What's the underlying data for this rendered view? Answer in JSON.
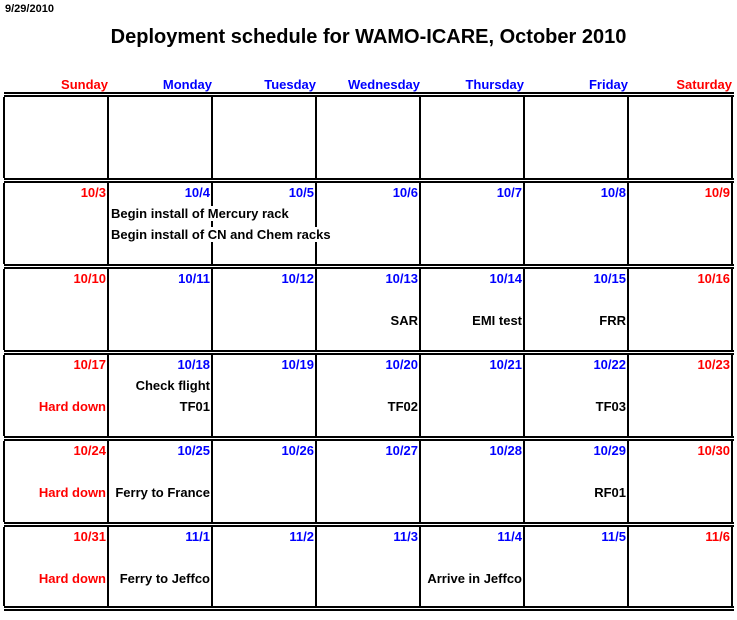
{
  "print_date": "9/29/2010",
  "title": "Deployment schedule for WAMO-ICARE, October 2010",
  "colors": {
    "weekend": "#ff0000",
    "weekday": "#0000ff",
    "event": "#000000",
    "hard_down": "#ff0000"
  },
  "days": [
    "Sunday",
    "Monday",
    "Tuesday",
    "Wednesday",
    "Thursday",
    "Friday",
    "Saturday"
  ],
  "weeks": [
    {
      "dates": [
        "",
        "",
        "",
        "",
        "",
        "",
        ""
      ],
      "events": []
    },
    {
      "dates": [
        "10/3",
        "10/4",
        "10/5",
        "10/6",
        "10/7",
        "10/8",
        "10/9"
      ],
      "events": [
        {
          "day": 1,
          "line": 1,
          "text": "Begin install of Mercury rack",
          "span": true
        },
        {
          "day": 1,
          "line": 2,
          "text": "Begin install of CN and Chem racks",
          "span": true
        }
      ]
    },
    {
      "dates": [
        "10/10",
        "10/11",
        "10/12",
        "10/13",
        "10/14",
        "10/15",
        "10/16"
      ],
      "events": [
        {
          "day": 3,
          "line": 2,
          "text": "SAR"
        },
        {
          "day": 4,
          "line": 2,
          "text": "EMI test"
        },
        {
          "day": 5,
          "line": 2,
          "text": "FRR"
        }
      ]
    },
    {
      "dates": [
        "10/17",
        "10/18",
        "10/19",
        "10/20",
        "10/21",
        "10/22",
        "10/23"
      ],
      "events": [
        {
          "day": 0,
          "line": 2,
          "text": "Hard down",
          "red": true
        },
        {
          "day": 1,
          "line": 1,
          "text": "Check flight"
        },
        {
          "day": 1,
          "line": 2,
          "text": "TF01"
        },
        {
          "day": 3,
          "line": 2,
          "text": "TF02"
        },
        {
          "day": 5,
          "line": 2,
          "text": "TF03"
        }
      ]
    },
    {
      "dates": [
        "10/24",
        "10/25",
        "10/26",
        "10/27",
        "10/28",
        "10/29",
        "10/30"
      ],
      "events": [
        {
          "day": 0,
          "line": 2,
          "text": "Hard down",
          "red": true
        },
        {
          "day": 1,
          "line": 2,
          "text": "Ferry to France"
        },
        {
          "day": 5,
          "line": 2,
          "text": "RF01"
        }
      ]
    },
    {
      "dates": [
        "10/31",
        "11/1",
        "11/2",
        "11/3",
        "11/4",
        "11/5",
        "11/6"
      ],
      "events": [
        {
          "day": 0,
          "line": 2,
          "text": "Hard down",
          "red": true
        },
        {
          "day": 1,
          "line": 2,
          "text": "Ferry to Jeffco"
        },
        {
          "day": 4,
          "line": 2,
          "text": "Arrive in Jeffco"
        }
      ]
    }
  ]
}
